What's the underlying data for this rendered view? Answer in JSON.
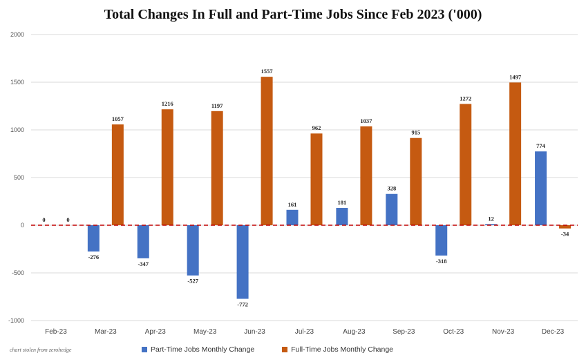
{
  "chart_data": {
    "type": "bar",
    "title": "Total Changes In Full and Part-Time Jobs Since Feb 2023 ('000)",
    "categories": [
      "Feb-23",
      "Mar-23",
      "Apr-23",
      "May-23",
      "Jun-23",
      "Jul-23",
      "Aug-23",
      "Sep-23",
      "Oct-23",
      "Nov-23",
      "Dec-23"
    ],
    "series": [
      {
        "name": "Part-Time Jobs Monthly Change",
        "color": "#4472c4",
        "values": [
          0,
          -276,
          -347,
          -527,
          -772,
          161,
          181,
          328,
          -318,
          12,
          774
        ]
      },
      {
        "name": "Full-Time Jobs Monthly Change",
        "color": "#c55a11",
        "values": [
          0,
          1057,
          1216,
          1197,
          1557,
          962,
          1037,
          915,
          1272,
          1497,
          -34
        ]
      }
    ],
    "ylim": [
      -1000,
      2000
    ],
    "yticks": [
      -1000,
      -500,
      0,
      500,
      1000,
      1500,
      2000
    ],
    "grid": true,
    "zero_line_color": "#c00000",
    "legend_position": "bottom",
    "source_note": "chart stolen from zerohedge"
  }
}
